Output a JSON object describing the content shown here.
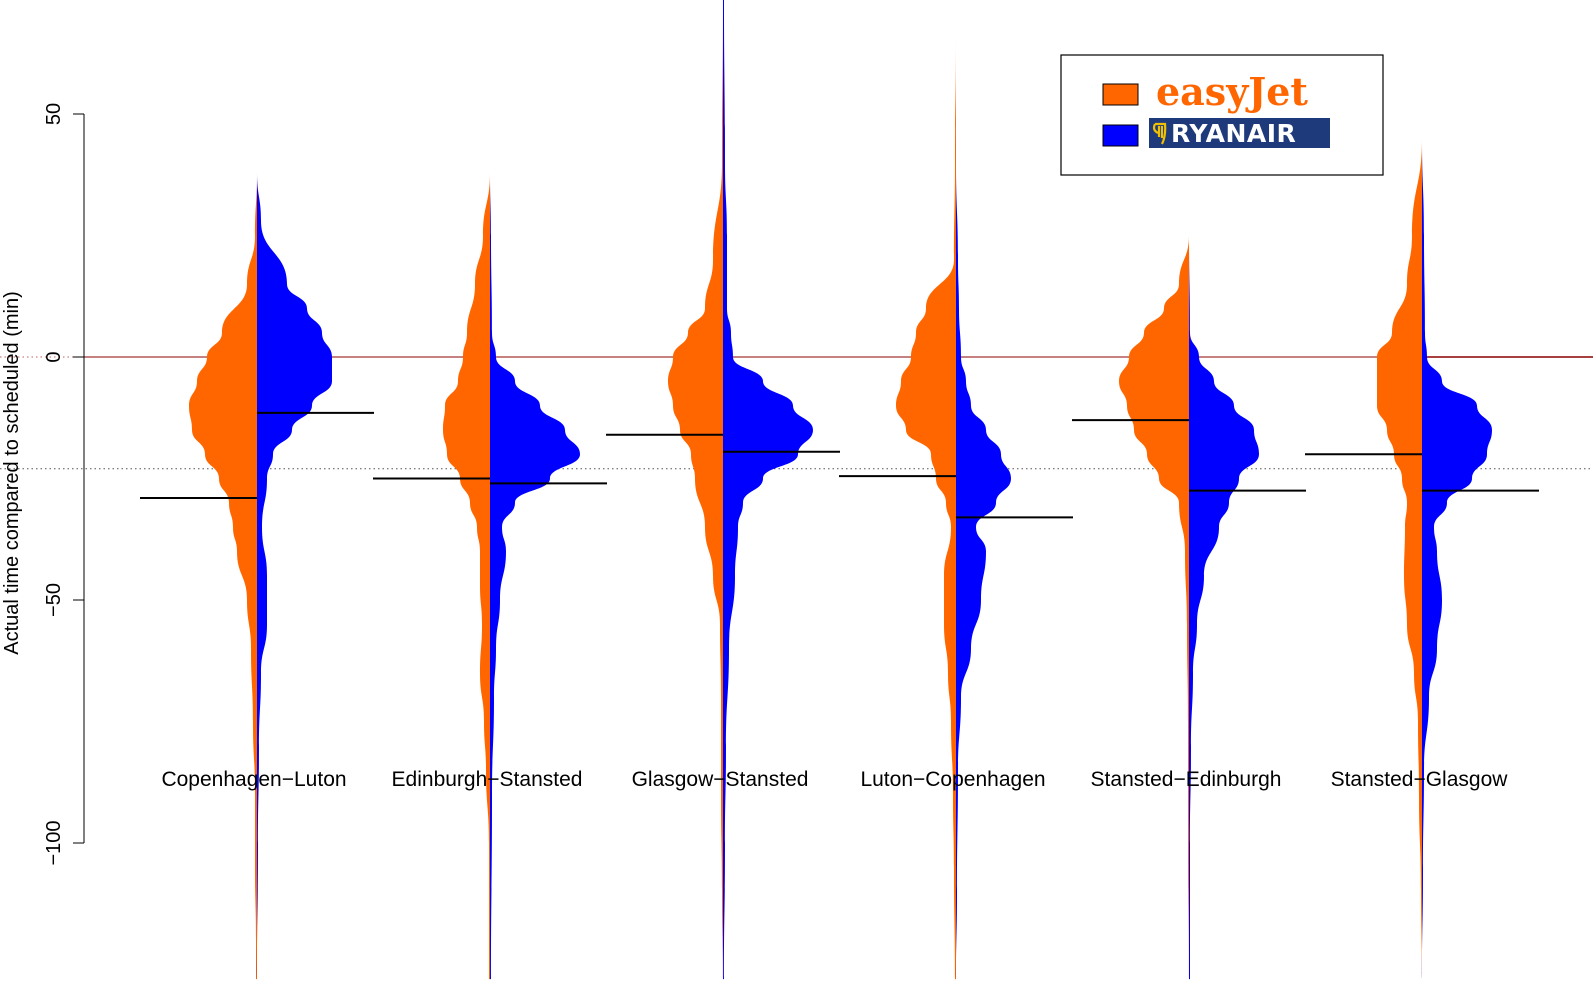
{
  "chart_data": {
    "type": "split-violin",
    "ylabel": "Actual time compared to  scheduled (min)",
    "yticks": [
      50,
      0,
      -50,
      -100
    ],
    "ylim": [
      -128,
      74
    ],
    "reference_lines": [
      {
        "y": 0,
        "color": "#8b0000",
        "style": "solid"
      },
      {
        "y": 0,
        "color": "#c06060",
        "style": "dotted"
      },
      {
        "y": -23,
        "color": "#555555",
        "style": "dotted"
      }
    ],
    "categories": [
      "Copenhagen−Luton",
      "Edinburgh−Stansted",
      "Glasgow−Stansted",
      "Luton−Copenhagen",
      "Stansted−Edinburgh",
      "Stansted−Glasgow"
    ],
    "series": [
      {
        "name": "easyJet",
        "color": "#ff6600",
        "side": "left",
        "medians": [
          -29,
          -25,
          -16,
          -24.5,
          -13,
          -20
        ]
      },
      {
        "name": "RYANAIR",
        "color": "#0000ff",
        "side": "right",
        "medians": [
          -11.5,
          -26,
          -19.5,
          -33,
          -27.5,
          -27.5
        ]
      }
    ],
    "violins": [
      {
        "left": [
          [
            38,
            0
          ],
          [
            25,
            2
          ],
          [
            15,
            10
          ],
          [
            5,
            35
          ],
          [
            0,
            50
          ],
          [
            -5,
            60
          ],
          [
            -10,
            68
          ],
          [
            -15,
            65
          ],
          [
            -20,
            52
          ],
          [
            -25,
            38
          ],
          [
            -30,
            28
          ],
          [
            -35,
            24
          ],
          [
            -40,
            20
          ],
          [
            -50,
            10
          ],
          [
            -60,
            6
          ],
          [
            -75,
            4
          ],
          [
            -90,
            2
          ],
          [
            -105,
            2
          ],
          [
            -120,
            1
          ],
          [
            -128,
            1
          ]
        ],
        "right": [
          [
            38,
            0
          ],
          [
            28,
            4
          ],
          [
            15,
            30
          ],
          [
            10,
            50
          ],
          [
            5,
            65
          ],
          [
            0,
            75
          ],
          [
            -5,
            75
          ],
          [
            -10,
            55
          ],
          [
            -15,
            35
          ],
          [
            -20,
            16
          ],
          [
            -25,
            10
          ],
          [
            -35,
            5
          ],
          [
            -45,
            10
          ],
          [
            -55,
            10
          ],
          [
            -65,
            4
          ],
          [
            -80,
            2
          ],
          [
            -100,
            1
          ],
          [
            -128,
            0
          ]
        ]
      },
      {
        "left": [
          [
            38,
            0
          ],
          [
            25,
            7
          ],
          [
            15,
            15
          ],
          [
            5,
            23
          ],
          [
            0,
            27
          ],
          [
            -5,
            32
          ],
          [
            -10,
            45
          ],
          [
            -15,
            47
          ],
          [
            -20,
            43
          ],
          [
            -25,
            30
          ],
          [
            -30,
            20
          ],
          [
            -35,
            13
          ],
          [
            -40,
            10
          ],
          [
            -47,
            10
          ],
          [
            -55,
            8
          ],
          [
            -65,
            10
          ],
          [
            -75,
            6
          ],
          [
            -85,
            4
          ],
          [
            -100,
            1
          ],
          [
            -128,
            1
          ]
        ],
        "right": [
          [
            38,
            0
          ],
          [
            25,
            1
          ],
          [
            5,
            2
          ],
          [
            0,
            6
          ],
          [
            -5,
            25
          ],
          [
            -10,
            50
          ],
          [
            -15,
            75
          ],
          [
            -20,
            90
          ],
          [
            -25,
            60
          ],
          [
            -30,
            25
          ],
          [
            -35,
            12
          ],
          [
            -40,
            16
          ],
          [
            -50,
            10
          ],
          [
            -60,
            6
          ],
          [
            -70,
            4
          ],
          [
            -90,
            2
          ],
          [
            -128,
            1
          ]
        ]
      },
      {
        "left": [
          [
            74,
            0
          ],
          [
            40,
            1
          ],
          [
            20,
            10
          ],
          [
            10,
            18
          ],
          [
            5,
            35
          ],
          [
            0,
            50
          ],
          [
            -5,
            55
          ],
          [
            -10,
            50
          ],
          [
            -15,
            43
          ],
          [
            -20,
            32
          ],
          [
            -25,
            28
          ],
          [
            -35,
            18
          ],
          [
            -45,
            10
          ],
          [
            -55,
            3
          ],
          [
            -70,
            2
          ],
          [
            -90,
            2
          ],
          [
            -110,
            1
          ],
          [
            -128,
            0
          ]
        ],
        "right": [
          [
            74,
            1
          ],
          [
            40,
            2
          ],
          [
            25,
            4
          ],
          [
            10,
            4
          ],
          [
            5,
            8
          ],
          [
            0,
            10
          ],
          [
            -5,
            40
          ],
          [
            -10,
            70
          ],
          [
            -15,
            90
          ],
          [
            -20,
            75
          ],
          [
            -25,
            40
          ],
          [
            -30,
            20
          ],
          [
            -35,
            15
          ],
          [
            -45,
            12
          ],
          [
            -60,
            6
          ],
          [
            -80,
            3
          ],
          [
            -100,
            2
          ],
          [
            -128,
            1
          ]
        ]
      },
      {
        "left": [
          [
            65,
            0
          ],
          [
            40,
            1
          ],
          [
            20,
            2
          ],
          [
            10,
            30
          ],
          [
            5,
            40
          ],
          [
            0,
            45
          ],
          [
            -5,
            55
          ],
          [
            -10,
            60
          ],
          [
            -15,
            50
          ],
          [
            -20,
            25
          ],
          [
            -25,
            20
          ],
          [
            -30,
            10
          ],
          [
            -35,
            5
          ],
          [
            -45,
            12
          ],
          [
            -55,
            12
          ],
          [
            -65,
            8
          ],
          [
            -75,
            5
          ],
          [
            -90,
            3
          ],
          [
            -105,
            2
          ],
          [
            -128,
            1
          ]
        ],
        "right": [
          [
            65,
            0
          ],
          [
            40,
            0
          ],
          [
            20,
            2
          ],
          [
            10,
            3
          ],
          [
            0,
            5
          ],
          [
            -5,
            10
          ],
          [
            -10,
            15
          ],
          [
            -15,
            30
          ],
          [
            -20,
            45
          ],
          [
            -25,
            55
          ],
          [
            -30,
            40
          ],
          [
            -35,
            20
          ],
          [
            -40,
            30
          ],
          [
            -50,
            25
          ],
          [
            -60,
            15
          ],
          [
            -70,
            5
          ],
          [
            -85,
            2
          ],
          [
            -110,
            1
          ],
          [
            -128,
            0
          ]
        ]
      },
      {
        "left": [
          [
            25,
            0
          ],
          [
            15,
            10
          ],
          [
            10,
            25
          ],
          [
            5,
            45
          ],
          [
            0,
            60
          ],
          [
            -5,
            70
          ],
          [
            -10,
            62
          ],
          [
            -15,
            55
          ],
          [
            -20,
            42
          ],
          [
            -25,
            30
          ],
          [
            -30,
            10
          ],
          [
            -40,
            4
          ],
          [
            -55,
            2
          ],
          [
            -75,
            1
          ],
          [
            -100,
            1
          ],
          [
            -128,
            0
          ]
        ],
        "right": [
          [
            25,
            0
          ],
          [
            5,
            1
          ],
          [
            0,
            10
          ],
          [
            -5,
            25
          ],
          [
            -10,
            45
          ],
          [
            -15,
            65
          ],
          [
            -20,
            70
          ],
          [
            -25,
            50
          ],
          [
            -30,
            40
          ],
          [
            -35,
            30
          ],
          [
            -45,
            15
          ],
          [
            -55,
            8
          ],
          [
            -65,
            4
          ],
          [
            -80,
            2
          ],
          [
            -100,
            1
          ],
          [
            -128,
            1
          ]
        ]
      },
      {
        "left": [
          [
            45,
            0
          ],
          [
            25,
            10
          ],
          [
            15,
            15
          ],
          [
            5,
            30
          ],
          [
            0,
            45
          ],
          [
            -5,
            45
          ],
          [
            -10,
            45
          ],
          [
            -15,
            35
          ],
          [
            -20,
            28
          ],
          [
            -25,
            20
          ],
          [
            -30,
            15
          ],
          [
            -35,
            17
          ],
          [
            -45,
            18
          ],
          [
            -55,
            15
          ],
          [
            -65,
            8
          ],
          [
            -75,
            4
          ],
          [
            -90,
            3
          ],
          [
            -110,
            1
          ],
          [
            -128,
            0
          ]
        ],
        "right": [
          [
            45,
            0
          ],
          [
            25,
            2
          ],
          [
            5,
            3
          ],
          [
            0,
            5
          ],
          [
            -5,
            20
          ],
          [
            -10,
            55
          ],
          [
            -15,
            70
          ],
          [
            -20,
            65
          ],
          [
            -25,
            50
          ],
          [
            -30,
            25
          ],
          [
            -35,
            12
          ],
          [
            -40,
            15
          ],
          [
            -50,
            20
          ],
          [
            -60,
            15
          ],
          [
            -70,
            7
          ],
          [
            -85,
            2
          ],
          [
            -105,
            1
          ],
          [
            -128,
            0
          ]
        ]
      }
    ],
    "legend": {
      "position": "top-right",
      "entries": [
        "easyJet",
        "RYANAIR"
      ]
    }
  }
}
